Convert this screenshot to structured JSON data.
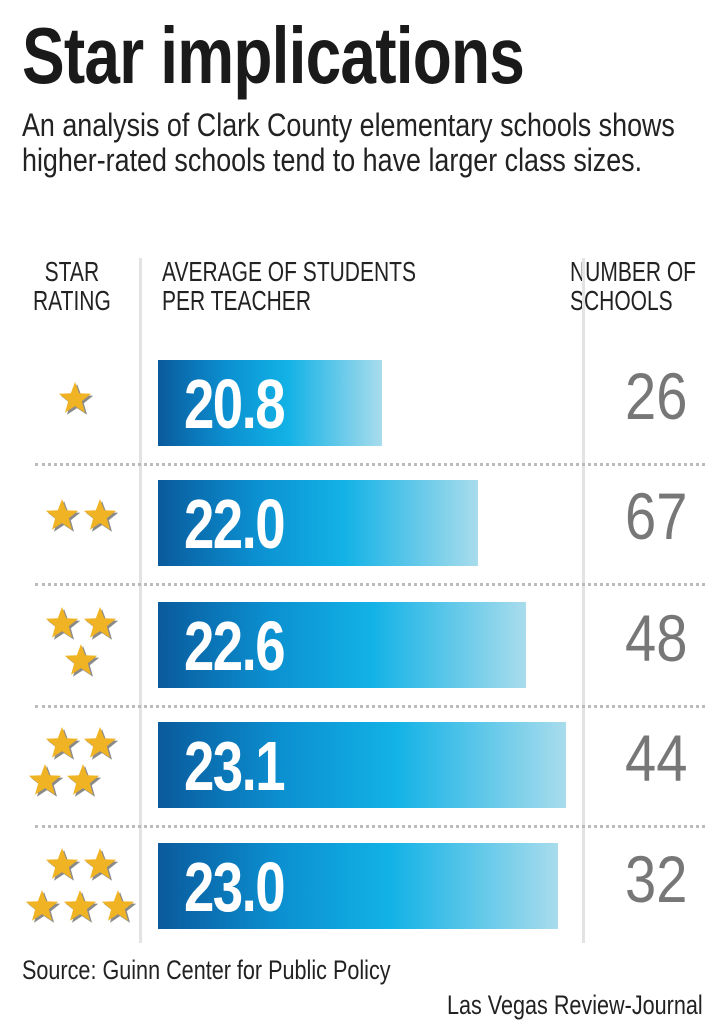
{
  "title": "Star implications",
  "subtitle": "An analysis of Clark County elementary schools shows higher-rated schools tend to have larger class sizes.",
  "headers": {
    "rating_line1": "STAR",
    "rating_line2": "RATING",
    "avg_line1": "AVERAGE OF STUDENTS",
    "avg_line2": "PER TEACHER",
    "count_line1": "NUMBER OF",
    "count_line2": "SCHOOLS"
  },
  "colors": {
    "bar_dark": "#0a5a9c",
    "bar_mid": "#12b2e6",
    "bar_light": "#a8dcec",
    "star": "#f0b323",
    "count_text": "#777777"
  },
  "chart_data": {
    "type": "bar",
    "orientation": "horizontal",
    "title": "Star implications",
    "categories": [
      "1 star",
      "2 stars",
      "3 stars",
      "4 stars",
      "5 stars"
    ],
    "star_counts": [
      1,
      2,
      3,
      4,
      5
    ],
    "series": [
      {
        "name": "Average of students per teacher",
        "values": [
          20.8,
          22.0,
          22.6,
          23.1,
          23.0
        ],
        "labels": [
          "20.8",
          "22.0",
          "22.6",
          "23.1",
          "23.0"
        ]
      },
      {
        "name": "Number of schools",
        "values": [
          26,
          67,
          48,
          44,
          32
        ]
      }
    ],
    "xlim": [
      18,
      23.1
    ]
  },
  "source": "Source: Guinn Center for Public Policy",
  "credit": "Las Vegas Review-Journal"
}
